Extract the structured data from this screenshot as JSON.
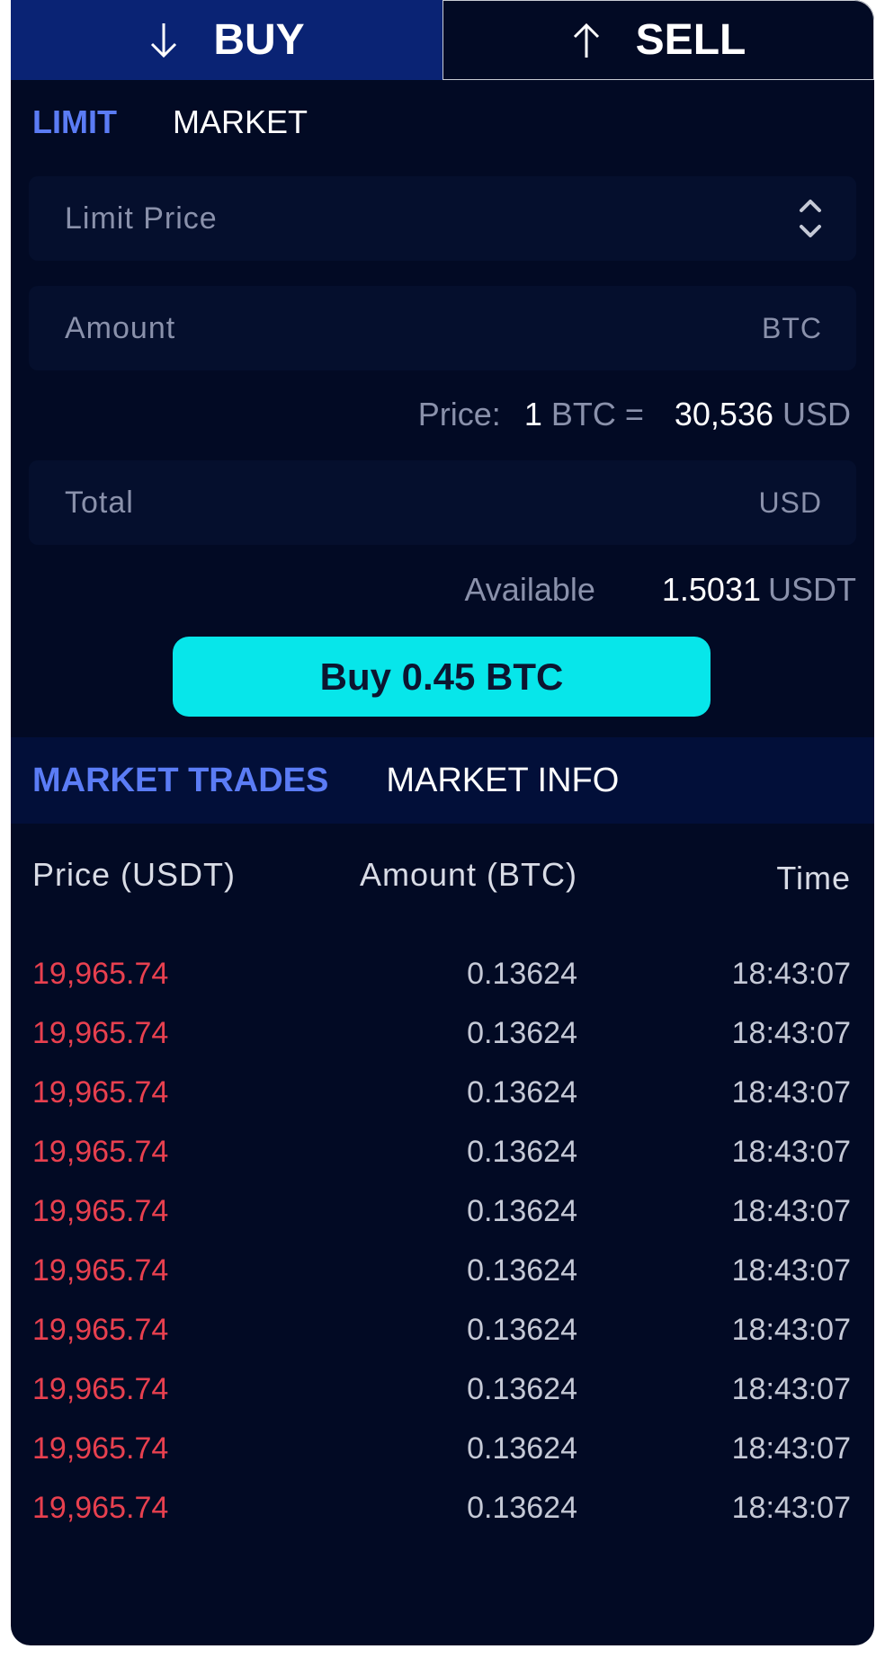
{
  "colors": {
    "accent": "#5b7cf5",
    "buy_button": "#07e6ea",
    "sell_price": "#e8404f",
    "background": "#020a24"
  },
  "side_tabs": {
    "buy": {
      "label": "BUY",
      "icon": "arrow-down-icon"
    },
    "sell": {
      "label": "SELL",
      "icon": "arrow-up-icon"
    }
  },
  "order_tabs": [
    {
      "label": "LIMIT",
      "active": true
    },
    {
      "label": "MARKET",
      "active": false
    }
  ],
  "form": {
    "limit_price": {
      "placeholder": "Limit Price",
      "icon": "stepper-icon"
    },
    "amount": {
      "placeholder": "Amount",
      "unit": "BTC"
    },
    "price_info": {
      "label": "Price:",
      "qty": "1",
      "base": "BTC =",
      "value": "30,536",
      "quote": "USD"
    },
    "total": {
      "placeholder": "Total",
      "unit": "USD"
    },
    "available": {
      "label": "Available",
      "value": "1.5031",
      "unit": "USDT"
    }
  },
  "buy_button": {
    "label": "Buy 0.45 BTC"
  },
  "market_tabs": [
    {
      "label": "MARKET TRADES",
      "active": true
    },
    {
      "label": "MARKET INFO",
      "active": false
    }
  ],
  "trades_table": {
    "headers": {
      "price": "Price (USDT)",
      "amount": "Amount (BTC)",
      "time": "Time"
    },
    "rows": [
      {
        "price": "19,965.74",
        "amount": "0.13624",
        "time": "18:43:07"
      },
      {
        "price": "19,965.74",
        "amount": "0.13624",
        "time": "18:43:07"
      },
      {
        "price": "19,965.74",
        "amount": "0.13624",
        "time": "18:43:07"
      },
      {
        "price": "19,965.74",
        "amount": "0.13624",
        "time": "18:43:07"
      },
      {
        "price": "19,965.74",
        "amount": "0.13624",
        "time": "18:43:07"
      },
      {
        "price": "19,965.74",
        "amount": "0.13624",
        "time": "18:43:07"
      },
      {
        "price": "19,965.74",
        "amount": "0.13624",
        "time": "18:43:07"
      },
      {
        "price": "19,965.74",
        "amount": "0.13624",
        "time": "18:43:07"
      },
      {
        "price": "19,965.74",
        "amount": "0.13624",
        "time": "18:43:07"
      },
      {
        "price": "19,965.74",
        "amount": "0.13624",
        "time": "18:43:07"
      }
    ]
  }
}
